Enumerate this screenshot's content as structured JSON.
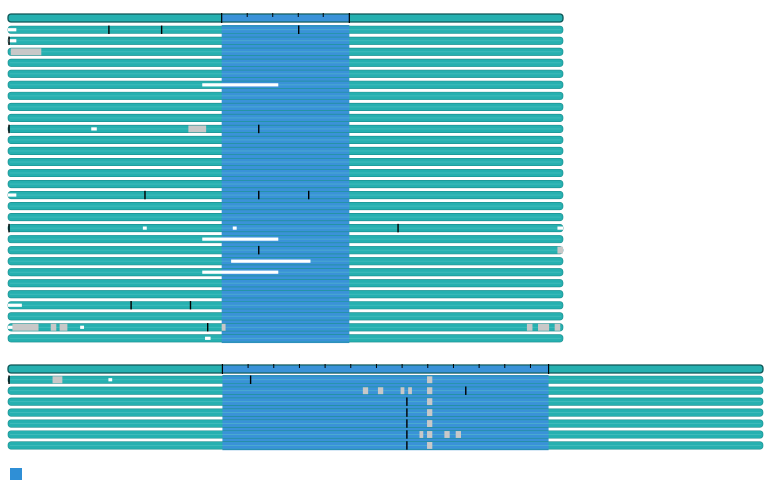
{
  "colors": {
    "track": "#26b0b0",
    "track_stroke": "#1a8c8c",
    "highlight": "#3a92d8",
    "gap": "#ffffff",
    "mismatch": "#c8c8c8",
    "tick": "#000000",
    "legend_swatch": "#2f8fd6"
  },
  "alignments": [
    {
      "name": "top-block",
      "columns": 1000,
      "highlight": [
        385,
        615
      ],
      "ruler_ticks": [
        431,
        477,
        523,
        568
      ],
      "rows": [
        {
          "ticks": [
            180,
            275,
            522
          ],
          "gaps": [
            [
              0,
              15
            ]
          ],
          "mismatch": []
        },
        {
          "ticks": [
            0
          ],
          "gaps": [
            [
              0,
              15
            ]
          ],
          "mismatch": []
        },
        {
          "ticks": [],
          "gaps": [],
          "mismatch": [
            [
              5,
              60
            ]
          ]
        },
        {
          "ticks": [],
          "gaps": [],
          "mismatch": []
        },
        {
          "ticks": [],
          "gaps": [],
          "mismatch": []
        },
        {
          "ticks": [],
          "gaps": [
            [
              350,
              487
            ]
          ],
          "mismatch": []
        },
        {
          "ticks": [],
          "gaps": [],
          "mismatch": []
        },
        {
          "ticks": [],
          "gaps": [],
          "mismatch": []
        },
        {
          "ticks": [],
          "gaps": [],
          "mismatch": []
        },
        {
          "ticks": [
            0,
            450
          ],
          "gaps": [
            [
              150,
              160
            ]
          ],
          "mismatch": [
            [
              325,
              357
            ]
          ]
        },
        {
          "ticks": [],
          "gaps": [],
          "mismatch": []
        },
        {
          "ticks": [],
          "gaps": [],
          "mismatch": []
        },
        {
          "ticks": [],
          "gaps": [],
          "mismatch": []
        },
        {
          "ticks": [],
          "gaps": [],
          "mismatch": []
        },
        {
          "ticks": [],
          "gaps": [],
          "mismatch": []
        },
        {
          "ticks": [
            245,
            450,
            540
          ],
          "gaps": [
            [
              0,
              15
            ]
          ],
          "mismatch": []
        },
        {
          "ticks": [],
          "gaps": [],
          "mismatch": []
        },
        {
          "ticks": [],
          "gaps": [],
          "mismatch": []
        },
        {
          "ticks": [
            0,
            701
          ],
          "gaps": [
            [
              243,
              250
            ],
            [
              405,
              412
            ],
            [
              990,
              1000
            ]
          ],
          "mismatch": []
        },
        {
          "ticks": [],
          "gaps": [
            [
              350,
              487
            ]
          ],
          "mismatch": []
        },
        {
          "ticks": [
            450
          ],
          "gaps": [],
          "mismatch": [
            [
              990,
              1000
            ]
          ]
        },
        {
          "ticks": [],
          "gaps": [
            [
              402,
              545
            ]
          ],
          "mismatch": []
        },
        {
          "ticks": [],
          "gaps": [
            [
              350,
              487
            ]
          ],
          "mismatch": []
        },
        {
          "ticks": [],
          "gaps": [],
          "mismatch": []
        },
        {
          "ticks": [],
          "gaps": [],
          "mismatch": []
        },
        {
          "ticks": [
            220,
            327
          ],
          "gaps": [
            [
              0,
              25
            ]
          ],
          "mismatch": []
        },
        {
          "ticks": [],
          "gaps": [],
          "mismatch": []
        },
        {
          "ticks": [
            358
          ],
          "gaps": [
            [
              0,
              8
            ],
            [
              130,
              137
            ]
          ],
          "mismatch": [
            [
              8,
              55
            ],
            [
              77,
              87
            ],
            [
              93,
              107
            ],
            [
              385,
              392
            ],
            [
              935,
              945
            ],
            [
              955,
              975
            ],
            [
              985,
              995
            ]
          ]
        },
        {
          "ticks": [],
          "gaps": [
            [
              355,
              365
            ]
          ],
          "mismatch": []
        }
      ]
    },
    {
      "name": "bottom-block",
      "columns": 1000,
      "highlight": [
        284,
        716
      ],
      "ruler_ticks": [
        318,
        352,
        386,
        420,
        454,
        488,
        522,
        556,
        590,
        624,
        658,
        692
      ],
      "rows": [
        {
          "ticks": [
            0,
            320
          ],
          "gaps": [
            [
              133,
              138
            ]
          ],
          "mismatch": [
            [
              59,
              72
            ],
            [
              555,
              562
            ]
          ]
        },
        {
          "ticks": [
            605
          ],
          "gaps": [],
          "mismatch": [
            [
              470,
              477
            ],
            [
              490,
              497
            ],
            [
              520,
              525
            ],
            [
              530,
              535
            ],
            [
              555,
              562
            ]
          ]
        },
        {
          "ticks": [
            527
          ],
          "gaps": [],
          "mismatch": [
            [
              555,
              562
            ]
          ]
        },
        {
          "ticks": [
            527
          ],
          "gaps": [],
          "mismatch": [
            [
              555,
              562
            ]
          ]
        },
        {
          "ticks": [
            527
          ],
          "gaps": [],
          "mismatch": [
            [
              555,
              562
            ]
          ]
        },
        {
          "ticks": [
            527
          ],
          "gaps": [],
          "mismatch": [
            [
              545,
              550
            ],
            [
              555,
              562
            ],
            [
              578,
              585
            ],
            [
              593,
              600
            ]
          ]
        },
        {
          "ticks": [
            527
          ],
          "gaps": [],
          "mismatch": [
            [
              555,
              562
            ]
          ]
        }
      ]
    }
  ]
}
